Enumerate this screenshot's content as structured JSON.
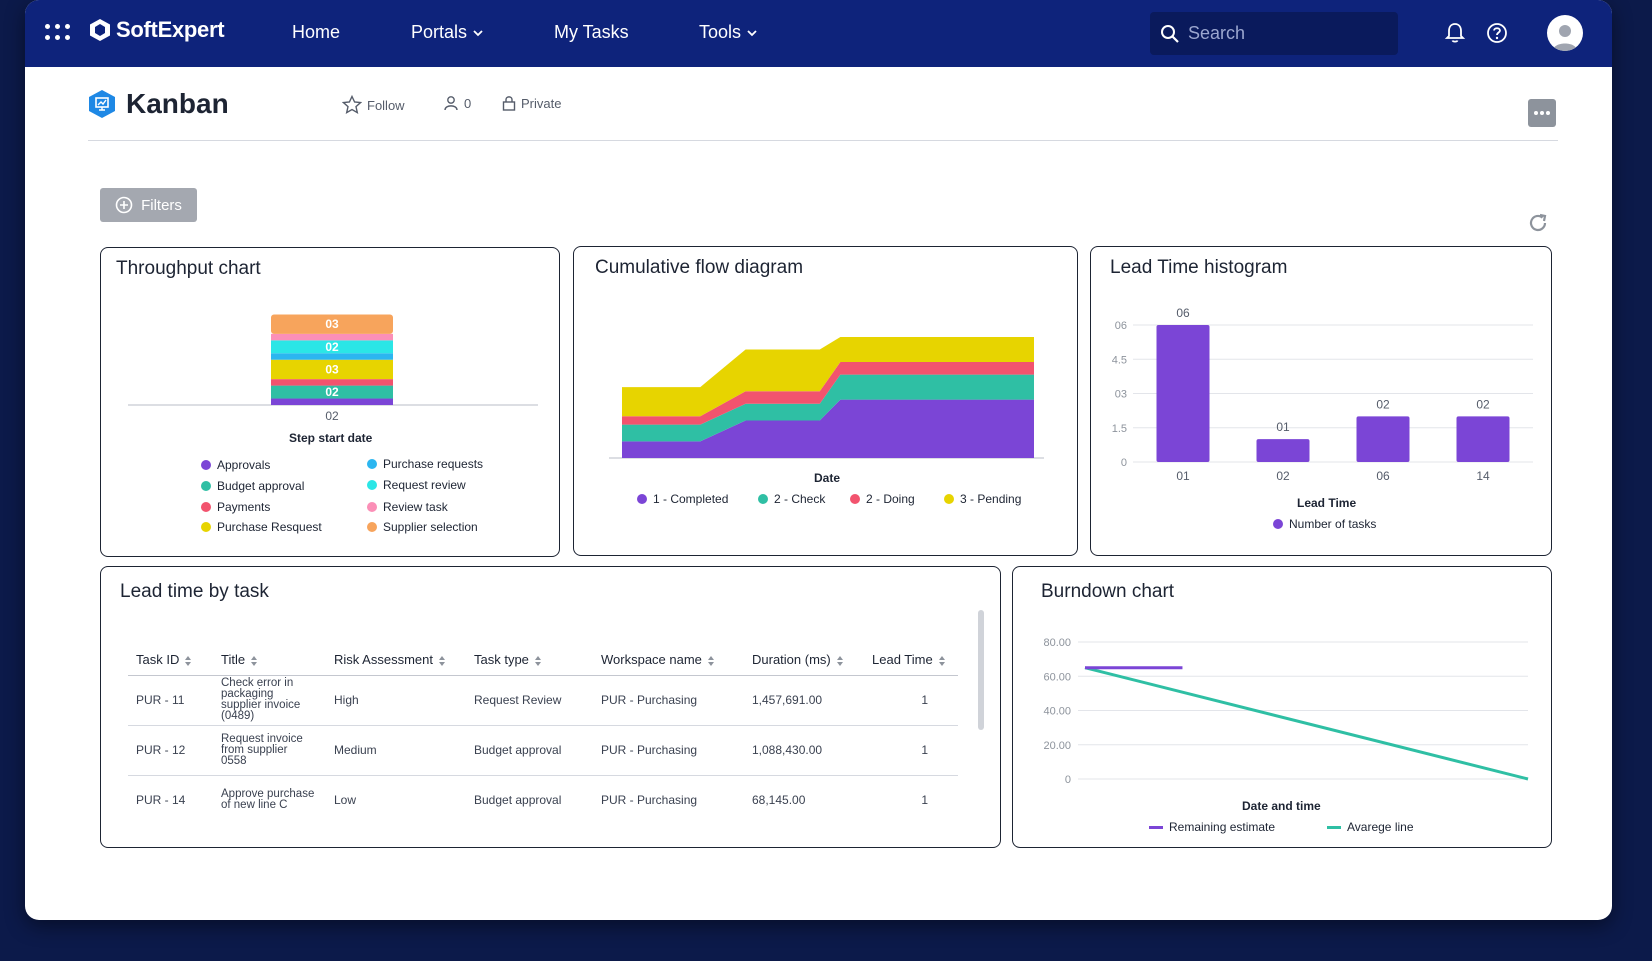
{
  "topbar": {
    "brand": "SoftExpert",
    "nav": [
      {
        "label": "Home"
      },
      {
        "label": "Portals"
      },
      {
        "label": "My Tasks"
      },
      {
        "label": "Tools"
      }
    ],
    "search_placeholder": "Search"
  },
  "page": {
    "title": "Kanban",
    "follow_label": "Follow",
    "members_count": "0",
    "privacy_label": "Private",
    "filters_label": "Filters"
  },
  "colors": {
    "topbar": "#0e237b",
    "approvals": "#7b45d6",
    "budget_approval": "#2fbfa4",
    "payments": "#f2536e",
    "purchase_request": "#e7d400",
    "purchase_requests": "#2cb6f0",
    "request_review": "#2be6e6",
    "review_task": "#fb8fb7",
    "supplier_selection": "#f7a45c"
  },
  "throughput": {
    "title": "Throughput chart",
    "xlabel": "Step start date",
    "legend": [
      {
        "label": "Approvals",
        "color": "#7b45d6"
      },
      {
        "label": "Budget approval",
        "color": "#2fbfa4"
      },
      {
        "label": "Payments",
        "color": "#f2536e"
      },
      {
        "label": "Purchase Resquest",
        "color": "#e7d400"
      },
      {
        "label": "Purchase requests",
        "color": "#2cb6f0"
      },
      {
        "label": "Request review",
        "color": "#2be6e6"
      },
      {
        "label": "Review task",
        "color": "#fb8fb7"
      },
      {
        "label": "Supplier selection",
        "color": "#f7a45c"
      }
    ]
  },
  "cfd": {
    "title": "Cumulative flow diagram",
    "xlabel": "Date",
    "legend": [
      {
        "label": "1 - Completed",
        "color": "#7b45d6"
      },
      {
        "label": "2 - Check",
        "color": "#2fbfa4"
      },
      {
        "label": "2 - Doing",
        "color": "#f2536e"
      },
      {
        "label": "3 - Pending",
        "color": "#e7d400"
      }
    ]
  },
  "histogram": {
    "title": "Lead Time histogram",
    "xlabel": "Lead Time",
    "legend_label": "Number of tasks"
  },
  "lead_table": {
    "title": "Lead time by task",
    "columns": [
      "Task ID",
      "Title",
      "Risk Assessment",
      "Task type",
      "Workspace name",
      "Duration (ms)",
      "Lead Time"
    ],
    "rows": [
      {
        "id": "PUR - 11",
        "title": "Check error in packaging supplier invoice (0489)",
        "risk": "High",
        "type": "Request Review",
        "workspace": "PUR - Purchasing",
        "duration": "1,457,691.00",
        "lead": "1"
      },
      {
        "id": "PUR - 12",
        "title": "Request invoice from supplier 0558",
        "risk": "Medium",
        "type": "Budget approval",
        "workspace": "PUR - Purchasing",
        "duration": "1,088,430.00",
        "lead": "1"
      },
      {
        "id": "PUR - 14",
        "title": "Approve purchase of new line C",
        "risk": "Low",
        "type": "Budget approval",
        "workspace": "PUR - Purchasing",
        "duration": "68,145.00",
        "lead": "1"
      }
    ]
  },
  "burndown": {
    "title": "Burndown chart",
    "xlabel": "Date and time",
    "legend": [
      {
        "label": "Remaining estimate",
        "color": "#7b45d6"
      },
      {
        "label": "Avarege line",
        "color": "#2fbfa4"
      }
    ]
  },
  "chart_data": [
    {
      "type": "bar",
      "id": "throughput",
      "title": "Throughput chart",
      "xlabel": "Step start date",
      "categories": [
        "02"
      ],
      "stacked": true,
      "series": [
        {
          "name": "Approvals",
          "values": [
            1
          ],
          "label": "",
          "color": "#7b45d6"
        },
        {
          "name": "Budget approval",
          "values": [
            2
          ],
          "label": "02",
          "color": "#2fbfa4"
        },
        {
          "name": "Payments",
          "values": [
            1
          ],
          "label": "",
          "color": "#f2536e"
        },
        {
          "name": "Purchase Resquest",
          "values": [
            3
          ],
          "label": "03",
          "color": "#e7d400"
        },
        {
          "name": "Purchase requests",
          "values": [
            1
          ],
          "label": "",
          "color": "#2cb6f0"
        },
        {
          "name": "Request review",
          "values": [
            2
          ],
          "label": "02",
          "color": "#2be6e6"
        },
        {
          "name": "Review task",
          "values": [
            1
          ],
          "label": "",
          "color": "#fb8fb7"
        },
        {
          "name": "Supplier selection",
          "values": [
            3
          ],
          "label": "03",
          "color": "#f7a45c"
        }
      ],
      "ylim": [
        0,
        15
      ]
    },
    {
      "type": "area",
      "id": "cfd",
      "title": "Cumulative flow diagram",
      "xlabel": "Date",
      "x": [
        0,
        1,
        2,
        3,
        4,
        5,
        6,
        7,
        8,
        9
      ],
      "stacked": true,
      "series": [
        {
          "name": "1 - Completed",
          "values": [
            4,
            4,
            4,
            9,
            9,
            9,
            14,
            14,
            14,
            14
          ],
          "color": "#7b45d6"
        },
        {
          "name": "2 - Check",
          "values": [
            4,
            4,
            4,
            4,
            4,
            4,
            6,
            6,
            6,
            6
          ],
          "color": "#2fbfa4"
        },
        {
          "name": "2 - Doing",
          "values": [
            2,
            2,
            2,
            3,
            3,
            3,
            3,
            3,
            3,
            3
          ],
          "color": "#f2536e"
        },
        {
          "name": "3 - Pending",
          "values": [
            7,
            7,
            7,
            10,
            10,
            10,
            6,
            6,
            6,
            6
          ],
          "color": "#e7d400"
        }
      ],
      "x_pos": [
        0,
        0.14,
        0.19,
        0.3,
        0.42,
        0.48,
        0.53,
        0.67,
        0.8,
        1.0
      ],
      "ylim": [
        0,
        35
      ]
    },
    {
      "type": "bar",
      "id": "histogram",
      "title": "Lead Time histogram",
      "xlabel": "Lead Time",
      "categories": [
        "01",
        "02",
        "06",
        "14"
      ],
      "series": [
        {
          "name": "Number of tasks",
          "values": [
            6,
            1,
            2,
            2
          ],
          "labels": [
            "06",
            "01",
            "02",
            "02"
          ],
          "color": "#7b45d6"
        }
      ],
      "yticks": [
        "0",
        "1.5",
        "03",
        "4.5",
        "06"
      ],
      "ylim": [
        0,
        6
      ]
    },
    {
      "type": "line",
      "id": "burndown",
      "title": "Burndown chart",
      "xlabel": "Date and time",
      "yticks": [
        "0",
        "20.00",
        "40.00",
        "60.00",
        "80.00"
      ],
      "ylim": [
        0,
        80
      ],
      "series": [
        {
          "name": "Remaining estimate",
          "x": [
            0,
            0.22
          ],
          "values": [
            65,
            65
          ],
          "color": "#7b45d6"
        },
        {
          "name": "Avarege line",
          "x": [
            0,
            1
          ],
          "values": [
            65,
            0
          ],
          "color": "#2fbfa4"
        }
      ]
    }
  ]
}
